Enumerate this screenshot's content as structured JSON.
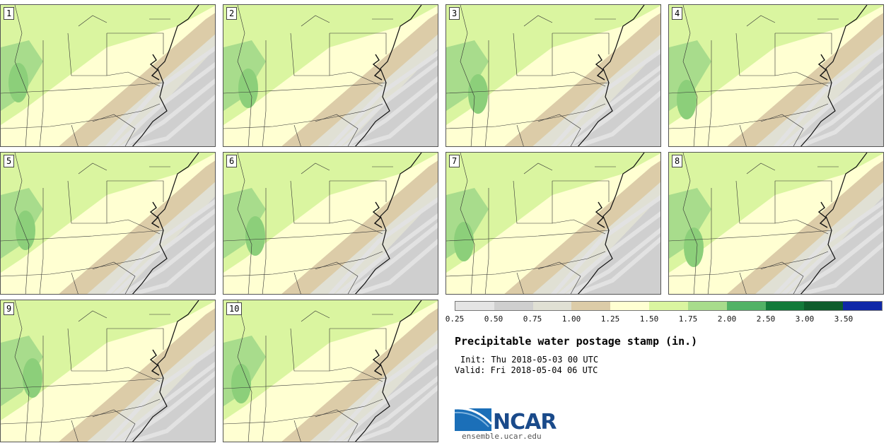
{
  "panels": [
    {
      "label": "1"
    },
    {
      "label": "2"
    },
    {
      "label": "3"
    },
    {
      "label": "4"
    },
    {
      "label": "5"
    },
    {
      "label": "6"
    },
    {
      "label": "7"
    },
    {
      "label": "8"
    },
    {
      "label": "9"
    },
    {
      "label": "10"
    }
  ],
  "colorbar": {
    "colors": [
      "#e4e4e4",
      "#cfcfcf",
      "#e0e0d4",
      "#dccca8",
      "#ffffd2",
      "#daf5a0",
      "#a8dc8c",
      "#52b266",
      "#127a3a",
      "#0e5c2c",
      "#1028a8"
    ],
    "ticks": [
      "0.25",
      "0.50",
      "0.75",
      "1.00",
      "1.25",
      "1.50",
      "1.75",
      "2.00",
      "2.50",
      "3.00",
      "3.50"
    ]
  },
  "title": "Precipitable water postage stamp (in.)",
  "init": "Init: Thu 2018-05-03 00 UTC",
  "valid": "Valid: Fri 2018-05-04 06 UTC",
  "logo": {
    "name": "NCAR",
    "url": "ensemble.ucar.edu"
  }
}
